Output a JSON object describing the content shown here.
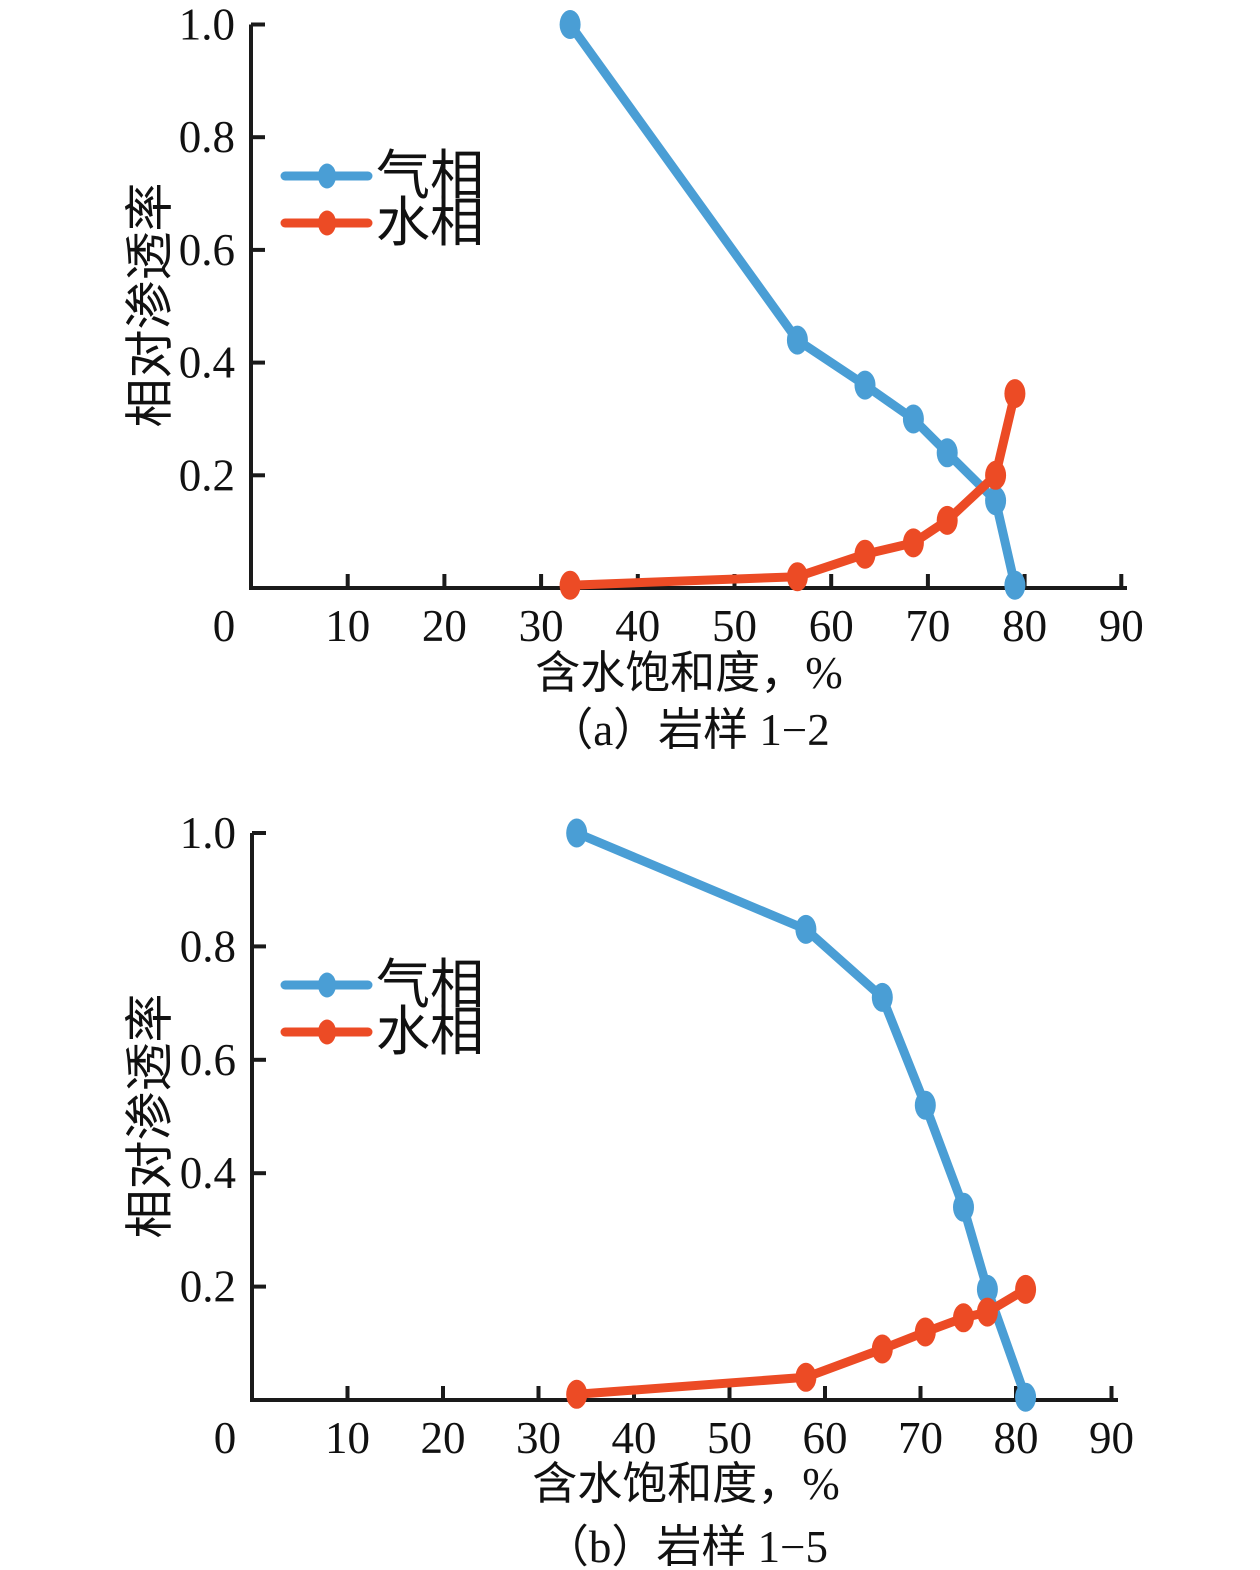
{
  "figure": {
    "background": "#ffffff",
    "axis_color": "#1a1a1a",
    "text_color": "#111111"
  },
  "chart_data": [
    {
      "type": "line",
      "panel": "a",
      "caption": "（a）岩样 1−2",
      "xlabel": "含水饱和度，%",
      "ylabel": "相对渗透率",
      "xlim": [
        0,
        90
      ],
      "ylim": [
        0,
        1.0
      ],
      "xticks": [
        0,
        10,
        20,
        30,
        40,
        50,
        60,
        70,
        80,
        90
      ],
      "yticks": [
        0.2,
        0.4,
        0.6,
        0.8,
        1.0
      ],
      "grid": false,
      "legend_position": "upper-left-inside",
      "series": [
        {
          "name": "气相",
          "color": "#4A9ED5",
          "x": [
            33,
            56.5,
            63.5,
            68.5,
            72,
            77,
            79
          ],
          "y": [
            1.0,
            0.44,
            0.36,
            0.3,
            0.24,
            0.155,
            0.005
          ]
        },
        {
          "name": "水相",
          "color": "#EC4B25",
          "x": [
            33,
            56.5,
            63.5,
            68.5,
            72,
            77,
            79
          ],
          "y": [
            0.005,
            0.02,
            0.06,
            0.08,
            0.12,
            0.2,
            0.345
          ]
        }
      ]
    },
    {
      "type": "line",
      "panel": "b",
      "caption": "（b）岩样 1−5",
      "xlabel": "含水饱和度，%",
      "ylabel": "相对渗透率",
      "xlim": [
        0,
        90
      ],
      "ylim": [
        0,
        1.0
      ],
      "xticks": [
        0,
        10,
        20,
        30,
        40,
        50,
        60,
        70,
        80,
        90
      ],
      "yticks": [
        0.2,
        0.4,
        0.6,
        0.8,
        1.0
      ],
      "grid": false,
      "legend_position": "upper-left-inside",
      "series": [
        {
          "name": "气相",
          "color": "#4A9ED5",
          "x": [
            34,
            58,
            66,
            70.5,
            74.5,
            77,
            81
          ],
          "y": [
            1.0,
            0.83,
            0.71,
            0.52,
            0.34,
            0.195,
            0.005
          ]
        },
        {
          "name": "水相",
          "color": "#EC4B25",
          "x": [
            34,
            58,
            66,
            70.5,
            74.5,
            77,
            81
          ],
          "y": [
            0.01,
            0.04,
            0.09,
            0.12,
            0.145,
            0.155,
            0.195
          ]
        }
      ]
    }
  ]
}
